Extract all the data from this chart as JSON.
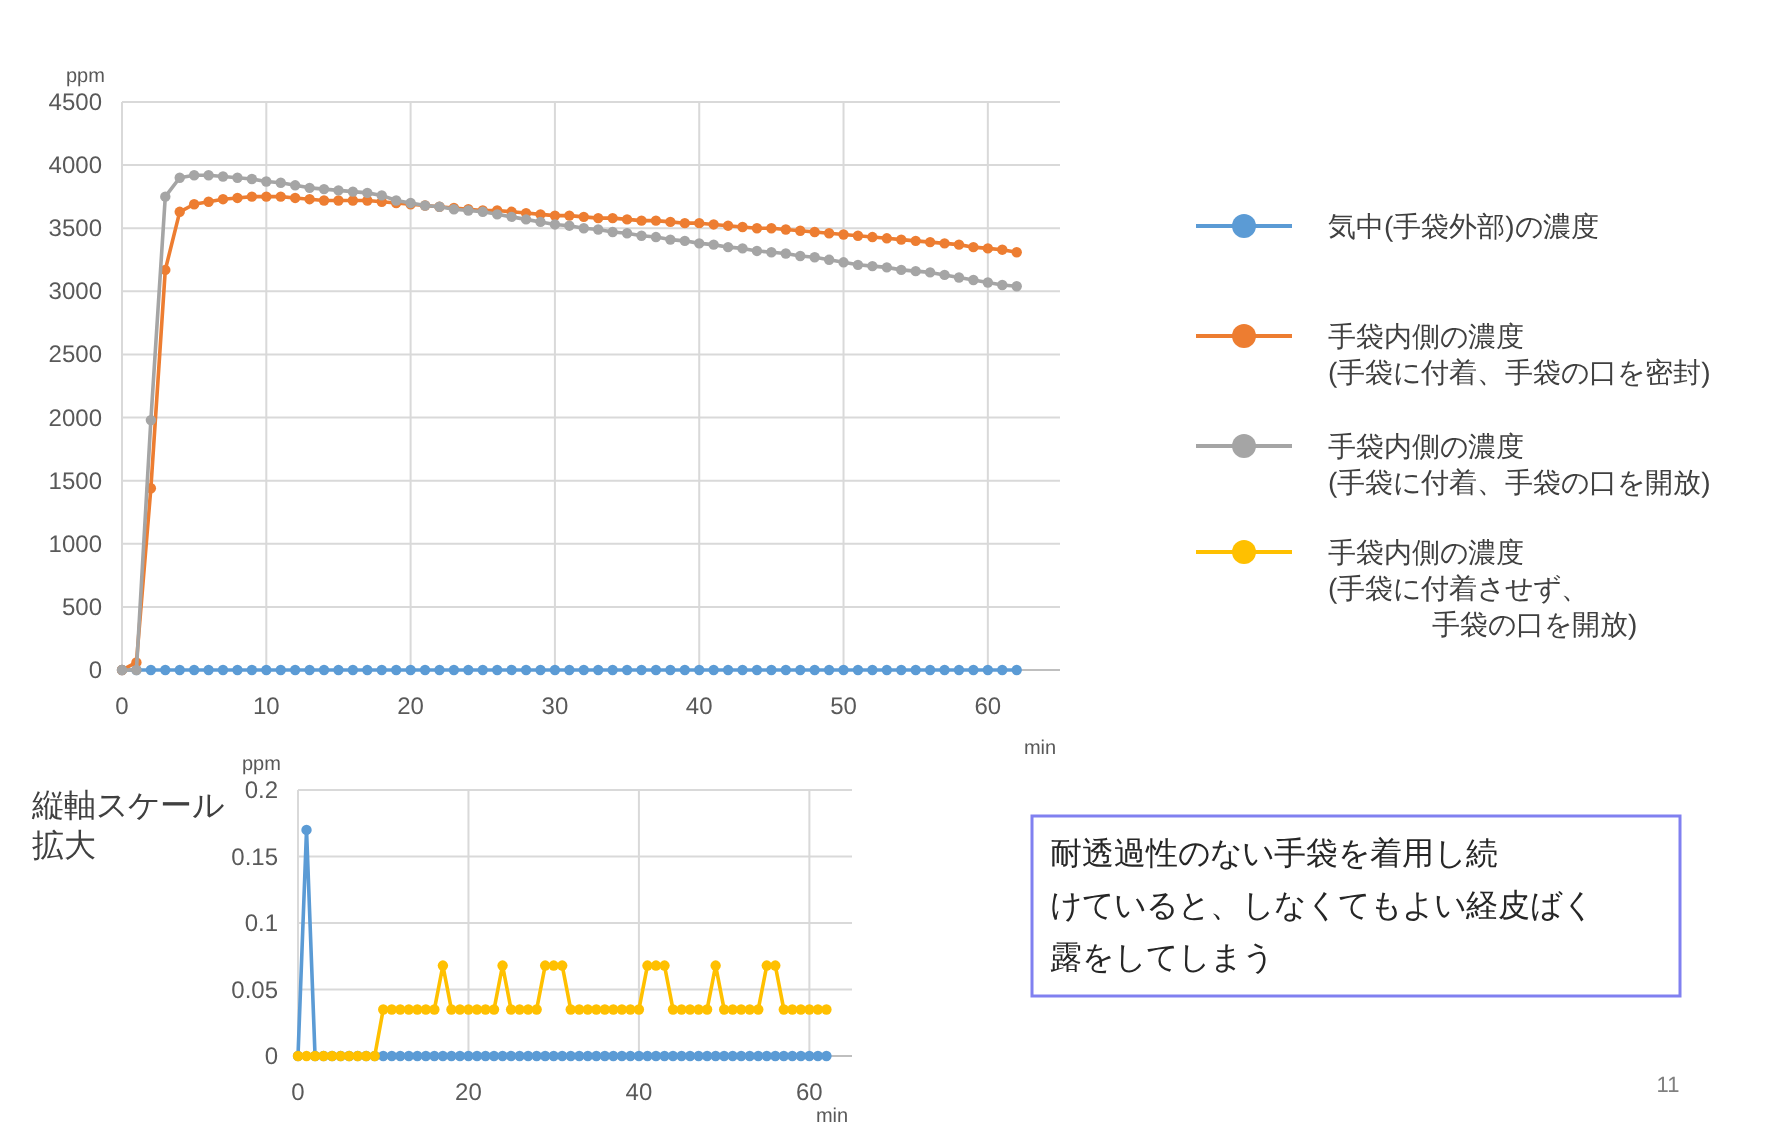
{
  "chart_data": [
    {
      "type": "line",
      "ylabel": "ppm",
      "xlabel": "min",
      "x": [
        0,
        1,
        2,
        3,
        4,
        5,
        6,
        7,
        8,
        9,
        10,
        11,
        12,
        13,
        14,
        15,
        16,
        17,
        18,
        19,
        20,
        21,
        22,
        23,
        24,
        25,
        26,
        27,
        28,
        29,
        30,
        31,
        32,
        33,
        34,
        35,
        36,
        37,
        38,
        39,
        40,
        41,
        42,
        43,
        44,
        45,
        46,
        47,
        48,
        49,
        50,
        51,
        52,
        53,
        54,
        55,
        56,
        57,
        58,
        59,
        60,
        61,
        62
      ],
      "series": [
        {
          "name": "気中(手袋外部)の濃度",
          "color": "#5b9bd5",
          "values": [
            0,
            0,
            0,
            0,
            0,
            0,
            0,
            0,
            0,
            0,
            0,
            0,
            0,
            0,
            0,
            0,
            0,
            0,
            0,
            0,
            0,
            0,
            0,
            0,
            0,
            0,
            0,
            0,
            0,
            0,
            0,
            0,
            0,
            0,
            0,
            0,
            0,
            0,
            0,
            0,
            0,
            0,
            0,
            0,
            0,
            0,
            0,
            0,
            0,
            0,
            0,
            0,
            0,
            0,
            0,
            0,
            0,
            0,
            0,
            0,
            0,
            0,
            0
          ]
        },
        {
          "name": "手袋内側の濃度(手袋に付着、手袋の口を密封)",
          "color": "#ed7d31",
          "values": [
            0,
            60,
            1440,
            3170,
            3630,
            3690,
            3710,
            3730,
            3740,
            3750,
            3750,
            3750,
            3740,
            3730,
            3720,
            3720,
            3720,
            3720,
            3710,
            3700,
            3690,
            3680,
            3670,
            3660,
            3650,
            3640,
            3640,
            3630,
            3620,
            3610,
            3600,
            3600,
            3590,
            3580,
            3580,
            3570,
            3560,
            3560,
            3550,
            3540,
            3540,
            3530,
            3520,
            3510,
            3500,
            3500,
            3490,
            3480,
            3470,
            3460,
            3450,
            3440,
            3430,
            3420,
            3410,
            3400,
            3390,
            3380,
            3370,
            3350,
            3340,
            3330,
            3310
          ]
        },
        {
          "name": "手袋内側の濃度(手袋に付着、手袋の口を開放)",
          "color": "#a5a5a5",
          "values": [
            0,
            0,
            1980,
            3750,
            3900,
            3920,
            3920,
            3910,
            3900,
            3890,
            3870,
            3860,
            3840,
            3820,
            3810,
            3800,
            3790,
            3780,
            3760,
            3720,
            3700,
            3680,
            3670,
            3650,
            3640,
            3630,
            3610,
            3590,
            3570,
            3550,
            3530,
            3520,
            3500,
            3490,
            3470,
            3460,
            3440,
            3430,
            3410,
            3400,
            3380,
            3370,
            3350,
            3340,
            3320,
            3310,
            3300,
            3280,
            3270,
            3250,
            3230,
            3210,
            3200,
            3190,
            3170,
            3160,
            3150,
            3130,
            3110,
            3090,
            3070,
            3050,
            3040
          ]
        }
      ],
      "xlim": [
        0,
        65
      ],
      "xticks": [
        0,
        10,
        20,
        30,
        40,
        50,
        60
      ],
      "ylim": [
        0,
        4500
      ],
      "yticks": [
        0,
        500,
        1000,
        1500,
        2000,
        2500,
        3000,
        3500,
        4000,
        4500
      ],
      "grid": true,
      "legend": "right",
      "marker": "circle"
    },
    {
      "type": "line",
      "ylabel": "ppm",
      "xlabel": "min",
      "x": [
        0,
        1,
        2,
        3,
        4,
        5,
        6,
        7,
        8,
        9,
        10,
        11,
        12,
        13,
        14,
        15,
        16,
        17,
        18,
        19,
        20,
        21,
        22,
        23,
        24,
        25,
        26,
        27,
        28,
        29,
        30,
        31,
        32,
        33,
        34,
        35,
        36,
        37,
        38,
        39,
        40,
        41,
        42,
        43,
        44,
        45,
        46,
        47,
        48,
        49,
        50,
        51,
        52,
        53,
        54,
        55,
        56,
        57,
        58,
        59,
        60,
        61,
        62
      ],
      "series": [
        {
          "color": "#5b9bd5",
          "values": [
            0,
            0.17,
            0,
            0,
            0,
            0,
            0,
            0,
            0,
            0,
            0,
            0,
            0,
            0,
            0,
            0,
            0,
            0,
            0,
            0,
            0,
            0,
            0,
            0,
            0,
            0,
            0,
            0,
            0,
            0,
            0,
            0,
            0,
            0,
            0,
            0,
            0,
            0,
            0,
            0,
            0,
            0,
            0,
            0,
            0,
            0,
            0,
            0,
            0,
            0,
            0,
            0,
            0,
            0,
            0,
            0,
            0,
            0,
            0,
            0,
            0,
            0,
            0
          ]
        },
        {
          "name": "手袋内側の濃度(手袋に付着させず、手袋の口を開放)",
          "color": "#ffc000",
          "values": [
            0,
            0,
            0,
            0,
            0,
            0,
            0,
            0,
            0,
            0,
            0.035,
            0.035,
            0.035,
            0.035,
            0.035,
            0.035,
            0.035,
            0.068,
            0.035,
            0.035,
            0.035,
            0.035,
            0.035,
            0.035,
            0.068,
            0.035,
            0.035,
            0.035,
            0.035,
            0.068,
            0.068,
            0.068,
            0.035,
            0.035,
            0.035,
            0.035,
            0.035,
            0.035,
            0.035,
            0.035,
            0.035,
            0.068,
            0.068,
            0.068,
            0.035,
            0.035,
            0.035,
            0.035,
            0.035,
            0.068,
            0.035,
            0.035,
            0.035,
            0.035,
            0.035,
            0.068,
            0.068,
            0.035,
            0.035,
            0.035,
            0.035,
            0.035,
            0.035
          ]
        }
      ],
      "xlim": [
        0,
        65
      ],
      "xticks": [
        0,
        20,
        40,
        60
      ],
      "ylim": [
        0,
        0.2
      ],
      "yticks": [
        0,
        0.05,
        0.1,
        0.15,
        0.2
      ],
      "grid": true,
      "legend": "right",
      "marker": "circle",
      "annotations": [
        "縦軸スケール拡大",
        "耐透過性のない手袋を着用し続けていると、しなくてもよい経皮ばく露をしてしまう",
        "11"
      ]
    }
  ]
}
